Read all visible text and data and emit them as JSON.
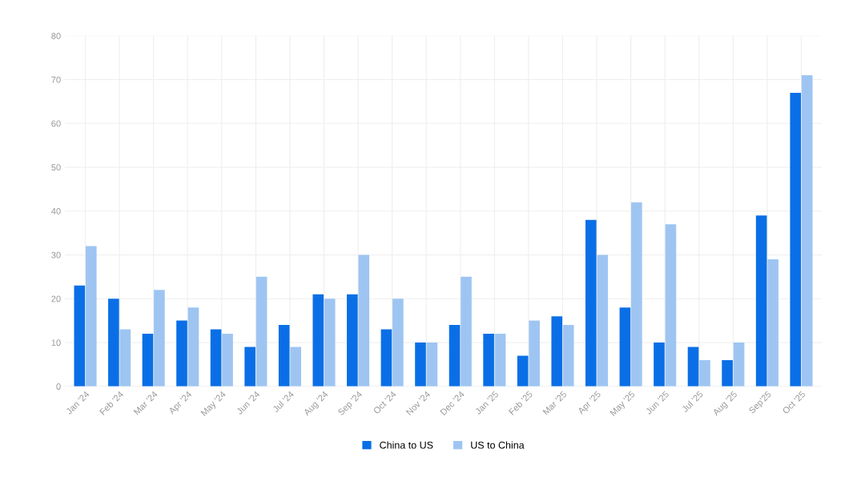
{
  "chart_data": {
    "type": "bar",
    "categories": [
      "Jan '24",
      "Feb '24",
      "Mar '24",
      "Apr '24",
      "May '24",
      "Jun '24",
      "Jul '24",
      "Aug '24",
      "Sep '24",
      "Oct '24",
      "Nov '24",
      "Dec '24",
      "Jan '25",
      "Feb '25",
      "Mar '25",
      "Apr '25",
      "May '25",
      "Jun '25",
      "Jul '25",
      "Aug '25",
      "Sep'25",
      "Oct '25"
    ],
    "series": [
      {
        "name": "China to US",
        "color": "#0a6fe6",
        "values": [
          23,
          20,
          12,
          15,
          13,
          9,
          14,
          21,
          21,
          13,
          10,
          14,
          12,
          7,
          16,
          38,
          18,
          10,
          9,
          6,
          39,
          67
        ]
      },
      {
        "name": "US to China",
        "color": "#9ec5f2",
        "values": [
          32,
          13,
          22,
          18,
          12,
          25,
          9,
          20,
          30,
          20,
          10,
          25,
          12,
          15,
          14,
          30,
          42,
          37,
          6,
          10,
          29,
          71
        ]
      }
    ],
    "ylim": [
      0,
      80
    ],
    "yticks": [
      0,
      10,
      20,
      30,
      40,
      50,
      60,
      70,
      80
    ],
    "grid": true,
    "legend": "bottom"
  }
}
